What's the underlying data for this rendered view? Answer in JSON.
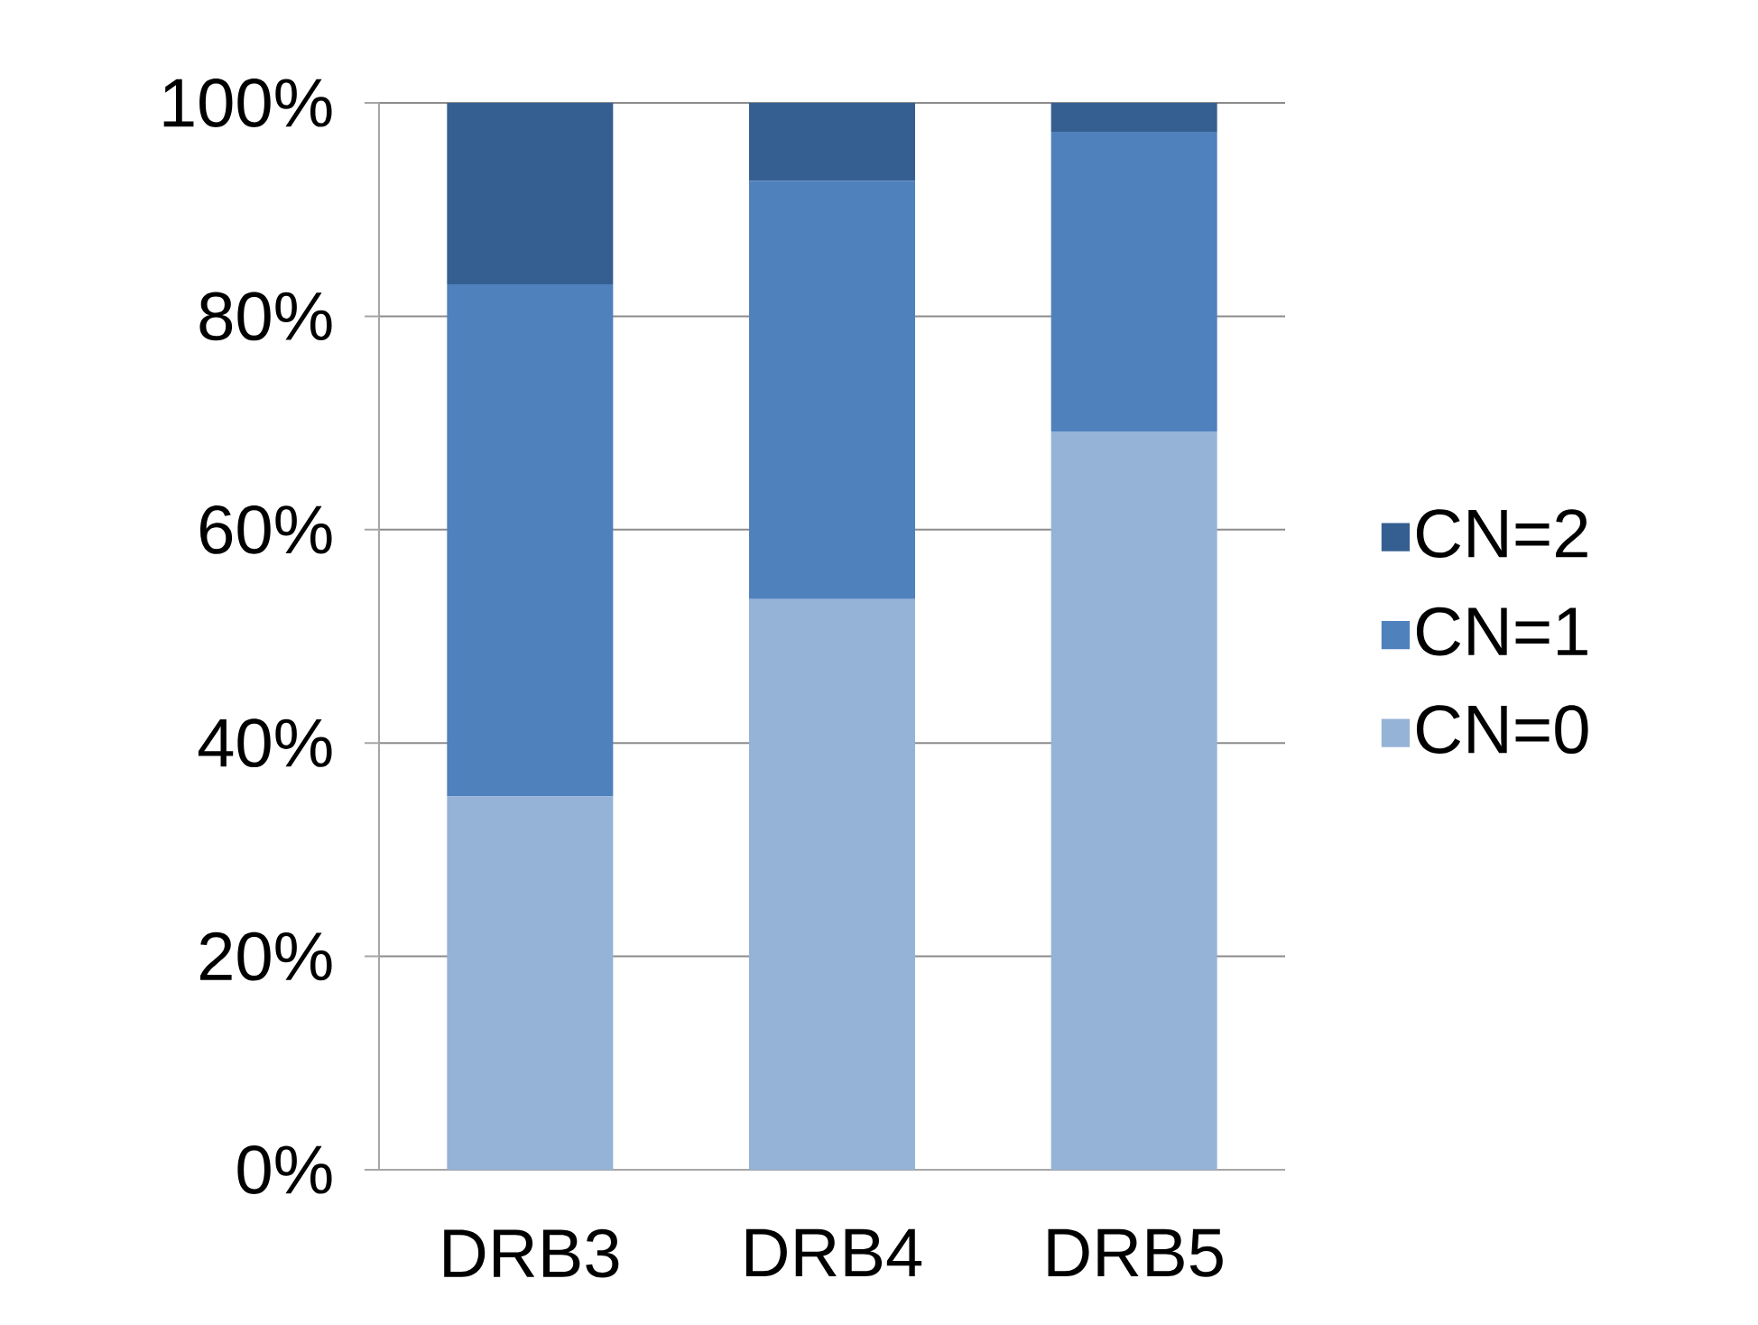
{
  "chart_data": {
    "type": "bar",
    "stacked": true,
    "categories": [
      "DRB3",
      "DRB4",
      "DRB5"
    ],
    "series": [
      {
        "name": "CN=0",
        "color": "#95b3d7",
        "values": [
          35,
          53.5,
          69.2
        ]
      },
      {
        "name": "CN=1",
        "color": "#4f81bd",
        "values": [
          48,
          39.2,
          28.1
        ]
      },
      {
        "name": "CN=2",
        "color": "#365f91",
        "values": [
          17,
          7.3,
          2.7
        ]
      }
    ],
    "ylim": [
      0,
      100
    ],
    "yticks": [
      {
        "value": 0,
        "label": "0%"
      },
      {
        "value": 20,
        "label": "20%"
      },
      {
        "value": 40,
        "label": "40%"
      },
      {
        "value": 60,
        "label": "60%"
      },
      {
        "value": 80,
        "label": "80%"
      },
      {
        "value": 100,
        "label": "100%"
      }
    ],
    "grid": "y",
    "legend": "right"
  }
}
